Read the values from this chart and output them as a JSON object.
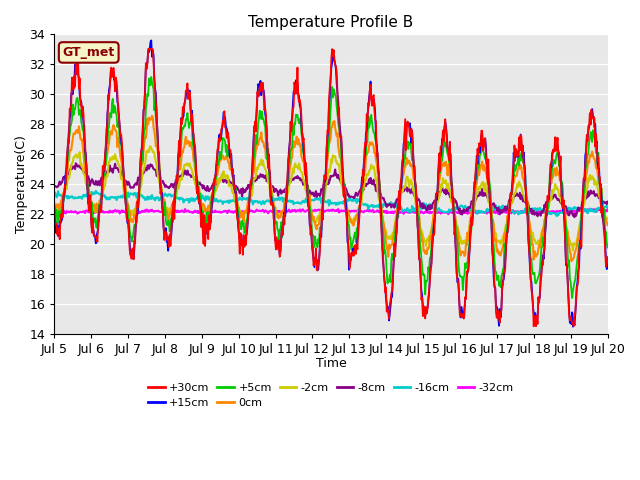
{
  "title": "Temperature Profile B",
  "xlabel": "Time",
  "ylabel": "Temperature(C)",
  "ylim": [
    14,
    34
  ],
  "xlim": [
    0,
    15
  ],
  "xtick_labels": [
    "Jul 5",
    "Jul 6",
    "Jul 7",
    "Jul 8",
    "Jul 9",
    "Jul 10",
    "Jul 11",
    "Jul 12",
    "Jul 13",
    "Jul 14",
    "Jul 15",
    "Jul 16",
    "Jul 17",
    "Jul 18",
    "Jul 19",
    "Jul 20"
  ],
  "series": [
    {
      "label": "+30cm",
      "color": "#ff0000"
    },
    {
      "label": "+15cm",
      "color": "#0000ff"
    },
    {
      "label": "+5cm",
      "color": "#00cc00"
    },
    {
      "label": "0cm",
      "color": "#ff8800"
    },
    {
      "label": "-2cm",
      "color": "#cccc00"
    },
    {
      "label": "-8cm",
      "color": "#880088"
    },
    {
      "label": "-16cm",
      "color": "#00cccc"
    },
    {
      "label": "-32cm",
      "color": "#ff00ff"
    }
  ],
  "bg_color": "#e8e8e8",
  "annotation_text": "GT_met",
  "annotation_color": "#8b0000",
  "annotation_bg": "#f5f5c8",
  "lw": [
    1.3,
    1.3,
    1.3,
    1.5,
    1.5,
    1.5,
    1.5,
    1.5
  ]
}
